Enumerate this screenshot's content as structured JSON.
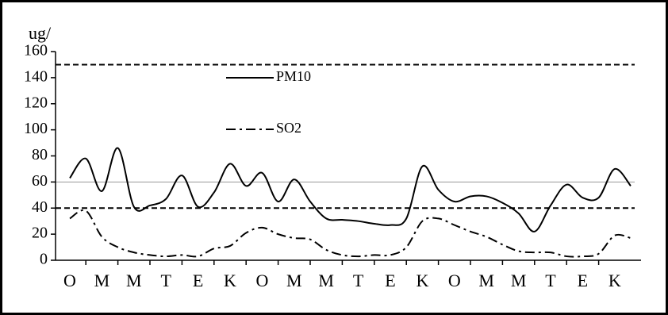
{
  "chart_data": {
    "type": "line",
    "y_label": "ug/",
    "categories": [
      "O",
      null,
      "M",
      null,
      "M",
      null,
      "T",
      null,
      "E",
      null,
      "K",
      null,
      "O",
      null,
      "M",
      null,
      "M",
      null,
      "T",
      null,
      "E",
      null,
      "K",
      null,
      "O",
      null,
      "M",
      null,
      "M",
      null,
      "T",
      null,
      "E",
      null,
      "K",
      null
    ],
    "series": [
      {
        "name": "PM10",
        "color": "#000000",
        "dash": "solid",
        "values": [
          63,
          78,
          53,
          86,
          41,
          42,
          47,
          65,
          41,
          52,
          74,
          57,
          67,
          45,
          62,
          45,
          32,
          31,
          30,
          28,
          27,
          32,
          72,
          54,
          45,
          49,
          49,
          44,
          36,
          22,
          42,
          58,
          48,
          48,
          70,
          57
        ]
      },
      {
        "name": "SO2",
        "color": "#000000",
        "dash": "dashdot",
        "values": [
          32,
          38,
          18,
          10,
          6,
          4,
          3,
          4,
          3,
          9,
          11,
          21,
          25,
          20,
          17,
          16,
          8,
          4,
          3,
          4,
          4,
          10,
          30,
          32,
          27,
          22,
          18,
          12,
          7,
          6,
          6,
          3,
          3,
          5,
          19,
          17
        ]
      }
    ],
    "reference_lines": [
      {
        "value": 150,
        "style": "dashed",
        "color": "#000000"
      },
      {
        "value": 60,
        "style": "solid",
        "color": "#999999"
      },
      {
        "value": 40,
        "style": "dashed",
        "color": "#000000"
      }
    ],
    "ylim": [
      0,
      160
    ],
    "yticks": [
      0,
      20,
      40,
      60,
      80,
      100,
      120,
      140,
      160
    ],
    "legend": "upper center"
  }
}
